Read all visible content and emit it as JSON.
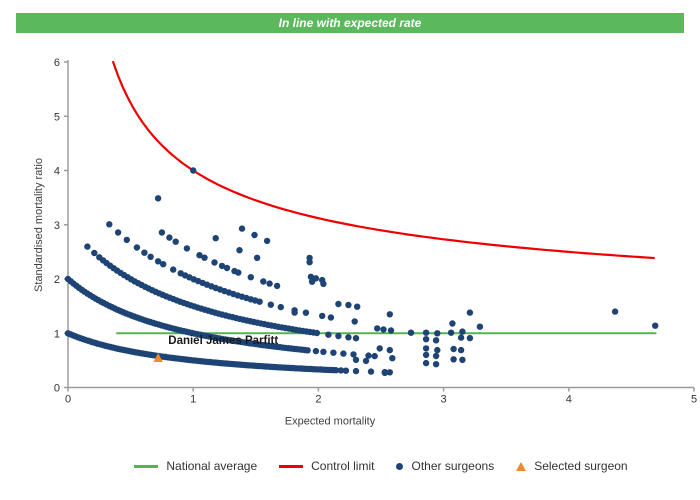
{
  "header": {
    "status_banner": "In line with expected rate",
    "banner_color": "#5CB85C"
  },
  "chart_data": {
    "type": "scatter",
    "subtype": "funnel-plot",
    "xlabel": "Expected mortality",
    "ylabel": "Standardised mortality ratio",
    "xlim": [
      0,
      5
    ],
    "ylim": [
      0,
      6
    ],
    "x_ticks": [
      0,
      1,
      2,
      3,
      4,
      5
    ],
    "y_ticks": [
      0,
      1,
      2,
      3,
      4,
      5,
      6
    ],
    "grid": false,
    "axis_color": "#9B9B9B",
    "tick_label_color": "#333333",
    "national_average": {
      "label": "National average",
      "y": 1,
      "x_start": 0.385,
      "x_end": 4.7,
      "color": "#53B453"
    },
    "control_limit": {
      "label": "Control limit",
      "formula": "y = 1 + 3/sqrt(x)",
      "x_start": 0.36,
      "x_end": 4.69,
      "color": "#EF0000"
    },
    "other_surgeons": {
      "label": "Other surgeons",
      "color": "#1E4476",
      "marker_radius": 3.2,
      "band_formula": "y = n / (1 + x)",
      "bands": [
        {
          "n": 1,
          "x_ranges": [
            [
              0,
              2.14,
              0.02
            ]
          ],
          "x_points": [
            2.18,
            2.22,
            2.3,
            2.42,
            2.53,
            2.57
          ]
        },
        {
          "n": 2,
          "x_ranges": [
            [
              0,
              1.92,
              0.022
            ]
          ],
          "x_points": [
            1.98,
            2.04,
            2.12,
            2.2,
            2.28,
            2.4,
            2.45
          ]
        },
        {
          "n": 3,
          "x_ranges": [
            [
              0.28,
              2.0,
              0.028
            ]
          ],
          "x_points": [
            0.155,
            0.21,
            0.25,
            2.08,
            2.16,
            2.24,
            2.3
          ]
        },
        {
          "n": 4,
          "x_ranges": [
            [
              0.9,
              1.55,
              0.035
            ]
          ],
          "x_points": [
            0.33,
            0.4,
            0.47,
            0.55,
            0.61,
            0.66,
            0.72,
            0.76,
            0.84,
            1.62,
            1.7,
            1.81,
            1.9,
            2.03,
            2.1,
            2.29
          ]
        },
        {
          "n": 5,
          "x_ranges": [],
          "x_points": [
            0.75,
            0.81,
            0.86,
            0.95,
            1.05,
            1.09,
            1.17,
            1.23,
            1.27,
            1.33,
            1.36,
            1.46,
            1.56,
            1.61,
            1.67
          ]
        },
        {
          "n": 6,
          "x_ranges": [],
          "x_points": [
            0.72,
            1.18,
            1.37,
            1.51,
            1.94,
            1.98,
            2.03
          ]
        },
        {
          "n": 7,
          "x_ranges": [],
          "x_points": [
            1.39,
            1.49,
            1.59,
            1.93
          ]
        },
        {
          "n": 8,
          "x_ranges": [],
          "x_points": [
            1.0
          ]
        }
      ],
      "scatter_points": [
        [
          2.16,
          1.54
        ],
        [
          2.24,
          1.52
        ],
        [
          2.31,
          1.49
        ],
        [
          2.47,
          1.09
        ],
        [
          2.52,
          1.07
        ],
        [
          2.58,
          1.05
        ],
        [
          2.57,
          1.35
        ],
        [
          2.74,
          1.01
        ],
        [
          2.86,
          1.01
        ],
        [
          2.95,
          1.0
        ],
        [
          2.86,
          0.89
        ],
        [
          2.94,
          0.87
        ],
        [
          2.86,
          0.72
        ],
        [
          2.95,
          0.69
        ],
        [
          2.86,
          0.6
        ],
        [
          2.94,
          0.58
        ],
        [
          2.86,
          0.45
        ],
        [
          2.94,
          0.43
        ],
        [
          2.3,
          0.51
        ],
        [
          2.38,
          0.49
        ],
        [
          2.49,
          0.72
        ],
        [
          2.57,
          0.69
        ],
        [
          2.59,
          0.54
        ],
        [
          2.53,
          0.27
        ],
        [
          3.06,
          1.01
        ],
        [
          3.15,
          1.03
        ],
        [
          3.07,
          1.18
        ],
        [
          3.14,
          0.92
        ],
        [
          3.21,
          0.91
        ],
        [
          3.08,
          0.71
        ],
        [
          3.14,
          0.69
        ],
        [
          3.08,
          0.52
        ],
        [
          3.15,
          0.51
        ],
        [
          3.21,
          1.38
        ],
        [
          3.29,
          1.12
        ],
        [
          4.37,
          1.4
        ],
        [
          4.69,
          1.14
        ],
        [
          1.81,
          1.38
        ],
        [
          1.93,
          2.31
        ],
        [
          1.95,
          1.95
        ],
        [
          2.04,
          1.91
        ]
      ]
    },
    "selected_surgeon": {
      "label": "Selected surgeon",
      "name": "Daniel James Parfitt",
      "x": 0.72,
      "y": 0.55,
      "color": "#F28C28",
      "name_label_anchor": {
        "x": 1.24,
        "y": 0.82
      }
    }
  },
  "legend": {
    "items": [
      {
        "label": "National average",
        "marker": "line",
        "color": "#53B453"
      },
      {
        "label": "Control limit",
        "marker": "line",
        "color": "#EF0000"
      },
      {
        "label": "Other surgeons",
        "marker": "dot",
        "color": "#1E4476"
      },
      {
        "label": "Selected surgeon",
        "marker": "triangle",
        "color": "#F28C28"
      }
    ]
  }
}
